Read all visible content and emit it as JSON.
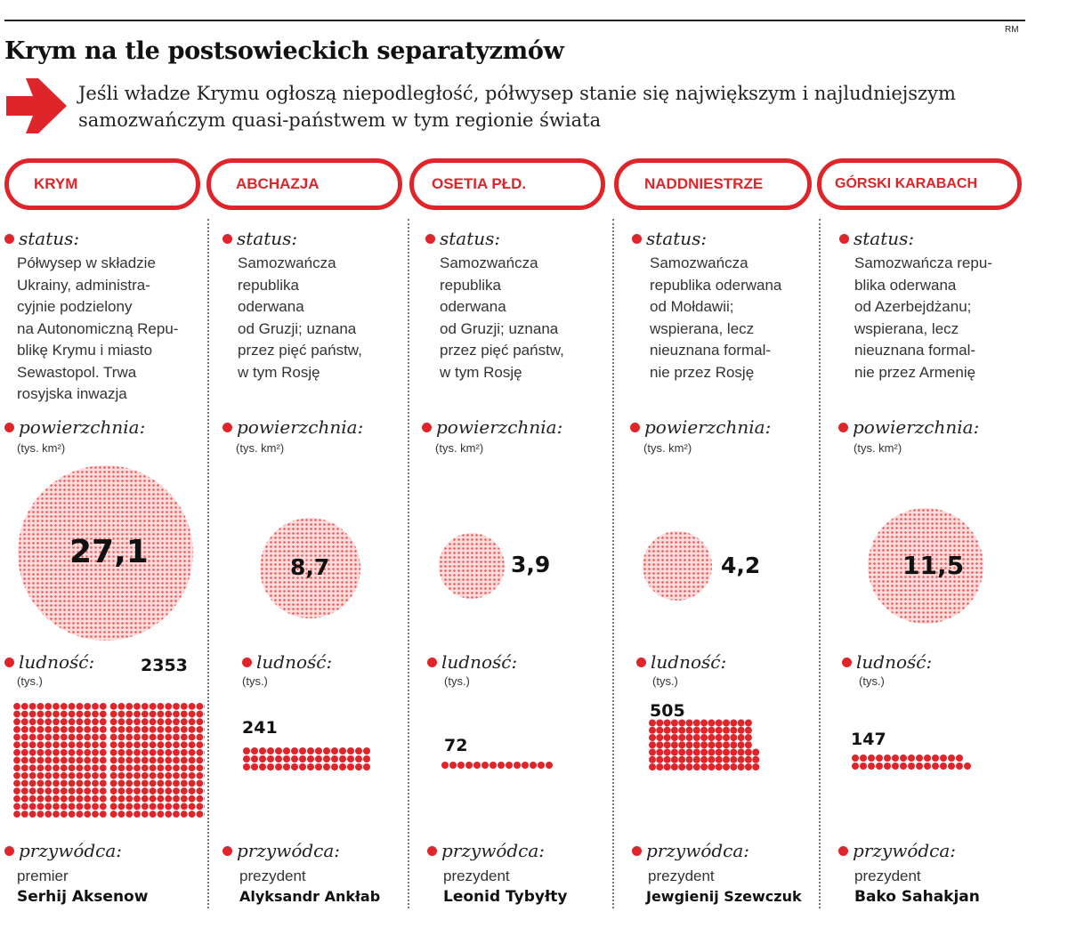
{
  "header": {
    "credit": "RM",
    "title": "Krym na tle postsowieckich separatyzmów",
    "subtitle": "Jeśli władze Krymu ogłoszą niepodległość, półwysep stanie się największym i najludniejszym samozwańczym quasi-państwem w tym regionie świata"
  },
  "labels": {
    "status": "status:",
    "area": "powierzchnia:",
    "area_unit": "(tys. km²)",
    "population": "ludność:",
    "population_unit": "(tys.)",
    "leader": "przywódca:"
  },
  "colors": {
    "accent": "#e0252a",
    "circle_fill": "#fbdcdc",
    "dot": "#e0252a"
  },
  "icons": {
    "arrow": "right-arrow-icon"
  },
  "chart_data": {
    "type": "table",
    "categories": [
      "KRYM",
      "ABCHAZJA",
      "OSETIA PŁD.",
      "NADDNIESTRZE",
      "GÓRSKI KARABACH"
    ],
    "area_values": [
      "27,1",
      "8,7",
      "3,9",
      "4,2",
      "11,5"
    ],
    "population_values": [
      "2353",
      "241",
      "72",
      "505",
      "147"
    ],
    "area_numeric": [
      27.1,
      8.7,
      3.9,
      4.2,
      11.5
    ],
    "population_numeric": [
      2353,
      241,
      72,
      505,
      147
    ]
  },
  "columns": [
    {
      "name": "KRYM",
      "status": "Półwysep w składzie\nUkrainy, administra-\ncyjnie podzielony\nna Autonomiczną Repu-\nblikę Krymu i miasto\nSewastopol. Trwa\nrosyjska inwazja",
      "area": "27,1",
      "population": "2353",
      "leader_role": "premier",
      "leader_name": "Serhij Aksenow"
    },
    {
      "name": "ABCHAZJA",
      "status": "Samozwańcza\nrepublika\noderwana\nod Gruzji; uznana\nprzez pięć państw,\nw tym Rosję",
      "area": "8,7",
      "population": "241",
      "leader_role": "prezydent",
      "leader_name": "Alyksandr Ankłab"
    },
    {
      "name": "OSETIA PŁD.",
      "status": "Samozwańcza\nrepublika\noderwana\nod Gruzji; uznana\nprzez pięć państw,\nw tym Rosję",
      "area": "3,9",
      "population": "72",
      "leader_role": "prezydent",
      "leader_name": "Leonid Tybyłty"
    },
    {
      "name": "NADDNIESTRZE",
      "status": "Samozwańcza\nrepublika oderwana\nod Mołdawii;\nwspierana, lecz\nnieuznana formal-\nnie przez Rosję",
      "area": "4,2",
      "population": "505",
      "leader_role": "prezydent",
      "leader_name": "Jewgienij Szewczuk"
    },
    {
      "name": "GÓRSKI KARABACH",
      "status": "Samozwańcza repu-\nblika oderwana\nod Azerbejdżanu;\nwspierana, lecz\nnieuznana formal-\nnie przez Armenię",
      "area": "11,5",
      "population": "147",
      "leader_role": "prezydent",
      "leader_name": "Bako Sahakjan"
    }
  ]
}
